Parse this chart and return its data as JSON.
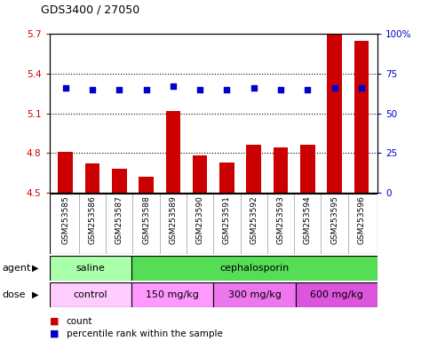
{
  "title": "GDS3400 / 27050",
  "samples": [
    "GSM253585",
    "GSM253586",
    "GSM253587",
    "GSM253588",
    "GSM253589",
    "GSM253590",
    "GSM253591",
    "GSM253592",
    "GSM253593",
    "GSM253594",
    "GSM253595",
    "GSM253596"
  ],
  "bar_values": [
    4.81,
    4.72,
    4.68,
    4.62,
    5.12,
    4.78,
    4.73,
    4.86,
    4.84,
    4.86,
    5.7,
    5.65
  ],
  "percentile_values": [
    66,
    65,
    65,
    65,
    67,
    65,
    65,
    66,
    65,
    65,
    66,
    66
  ],
  "bar_color": "#cc0000",
  "percentile_color": "#0000cc",
  "ylim_left": [
    4.5,
    5.7
  ],
  "ylim_right": [
    0,
    100
  ],
  "yticks_left": [
    4.5,
    4.8,
    5.1,
    5.4,
    5.7
  ],
  "yticks_right": [
    0,
    25,
    50,
    75,
    100
  ],
  "ytick_labels_left": [
    "4.5",
    "4.8",
    "5.1",
    "5.4",
    "5.7"
  ],
  "ytick_labels_right": [
    "0",
    "25",
    "50",
    "75",
    "100%"
  ],
  "hlines": [
    4.8,
    5.1,
    5.4
  ],
  "agent_row": [
    {
      "label": "saline",
      "start": 0,
      "end": 3,
      "color": "#aaffaa"
    },
    {
      "label": "cephalosporin",
      "start": 3,
      "end": 12,
      "color": "#55dd55"
    }
  ],
  "dose_row": [
    {
      "label": "control",
      "start": 0,
      "end": 3,
      "color": "#ffccff"
    },
    {
      "label": "150 mg/kg",
      "start": 3,
      "end": 6,
      "color": "#ff99ff"
    },
    {
      "label": "300 mg/kg",
      "start": 6,
      "end": 9,
      "color": "#ee77ee"
    },
    {
      "label": "600 mg/kg",
      "start": 9,
      "end": 12,
      "color": "#dd55dd"
    }
  ],
  "legend_count_color": "#cc0000",
  "legend_percentile_color": "#0000cc",
  "xlabel_agent": "agent",
  "xlabel_dose": "dose",
  "bar_bottom": 4.5,
  "figure_bg": "#ffffff",
  "axes_bg": "#ffffff",
  "tick_area_bg": "#cccccc"
}
